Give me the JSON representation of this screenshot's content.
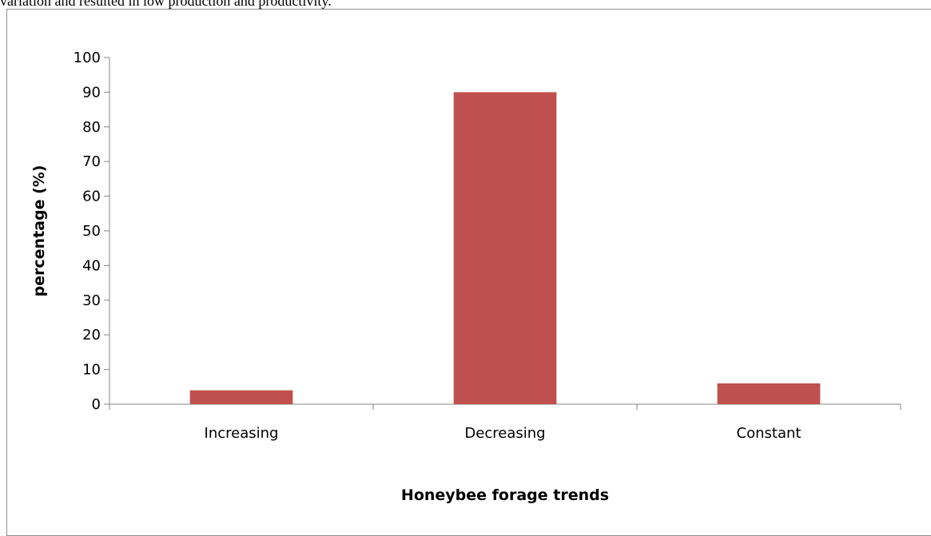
{
  "page": {
    "top_text": "variation and resulted in low production and productivity."
  },
  "chart_data": {
    "type": "bar",
    "title": "",
    "xlabel": "Honeybee forage trends",
    "ylabel": "percentage (%)",
    "categories": [
      "Increasing",
      "Decreasing",
      "Constant"
    ],
    "values": [
      4,
      90,
      6
    ],
    "ylim": [
      0,
      100
    ],
    "yticks": [
      0,
      10,
      20,
      30,
      40,
      50,
      60,
      70,
      80,
      90,
      100
    ],
    "grid": false,
    "legend": "none",
    "bar_color": "#C0504D",
    "axis_color": "#868686"
  }
}
